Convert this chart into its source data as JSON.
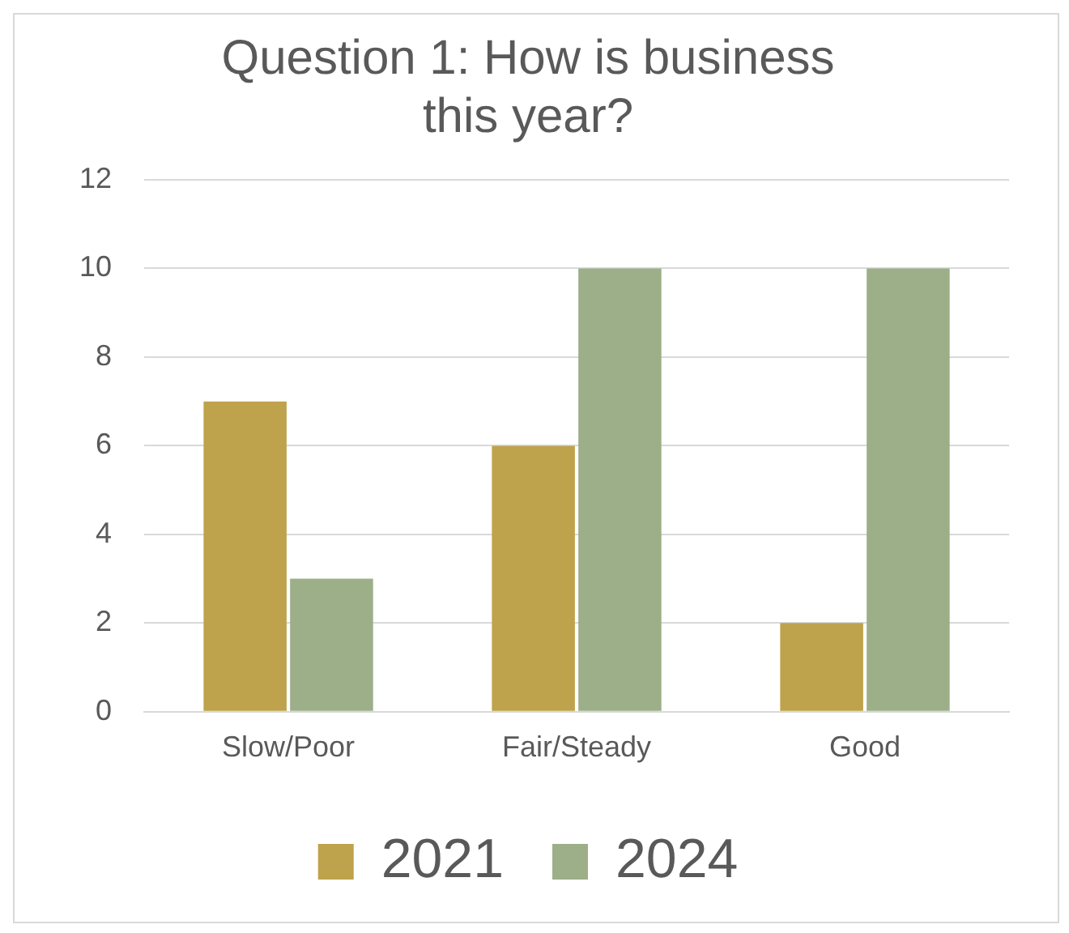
{
  "chart_data": {
    "type": "bar",
    "title": "Question 1: How is business this year?",
    "categories": [
      "Slow/Poor",
      "Fair/Steady",
      "Good"
    ],
    "series": [
      {
        "name": "2021",
        "color": "#bfa24c",
        "values": [
          7,
          6,
          2
        ]
      },
      {
        "name": "2024",
        "color": "#9caf88",
        "values": [
          3,
          10,
          10
        ]
      }
    ],
    "ylim": [
      0,
      12
    ],
    "yticks": [
      0,
      2,
      4,
      6,
      8,
      10,
      12
    ],
    "grid": "y",
    "legend": "bottom"
  }
}
